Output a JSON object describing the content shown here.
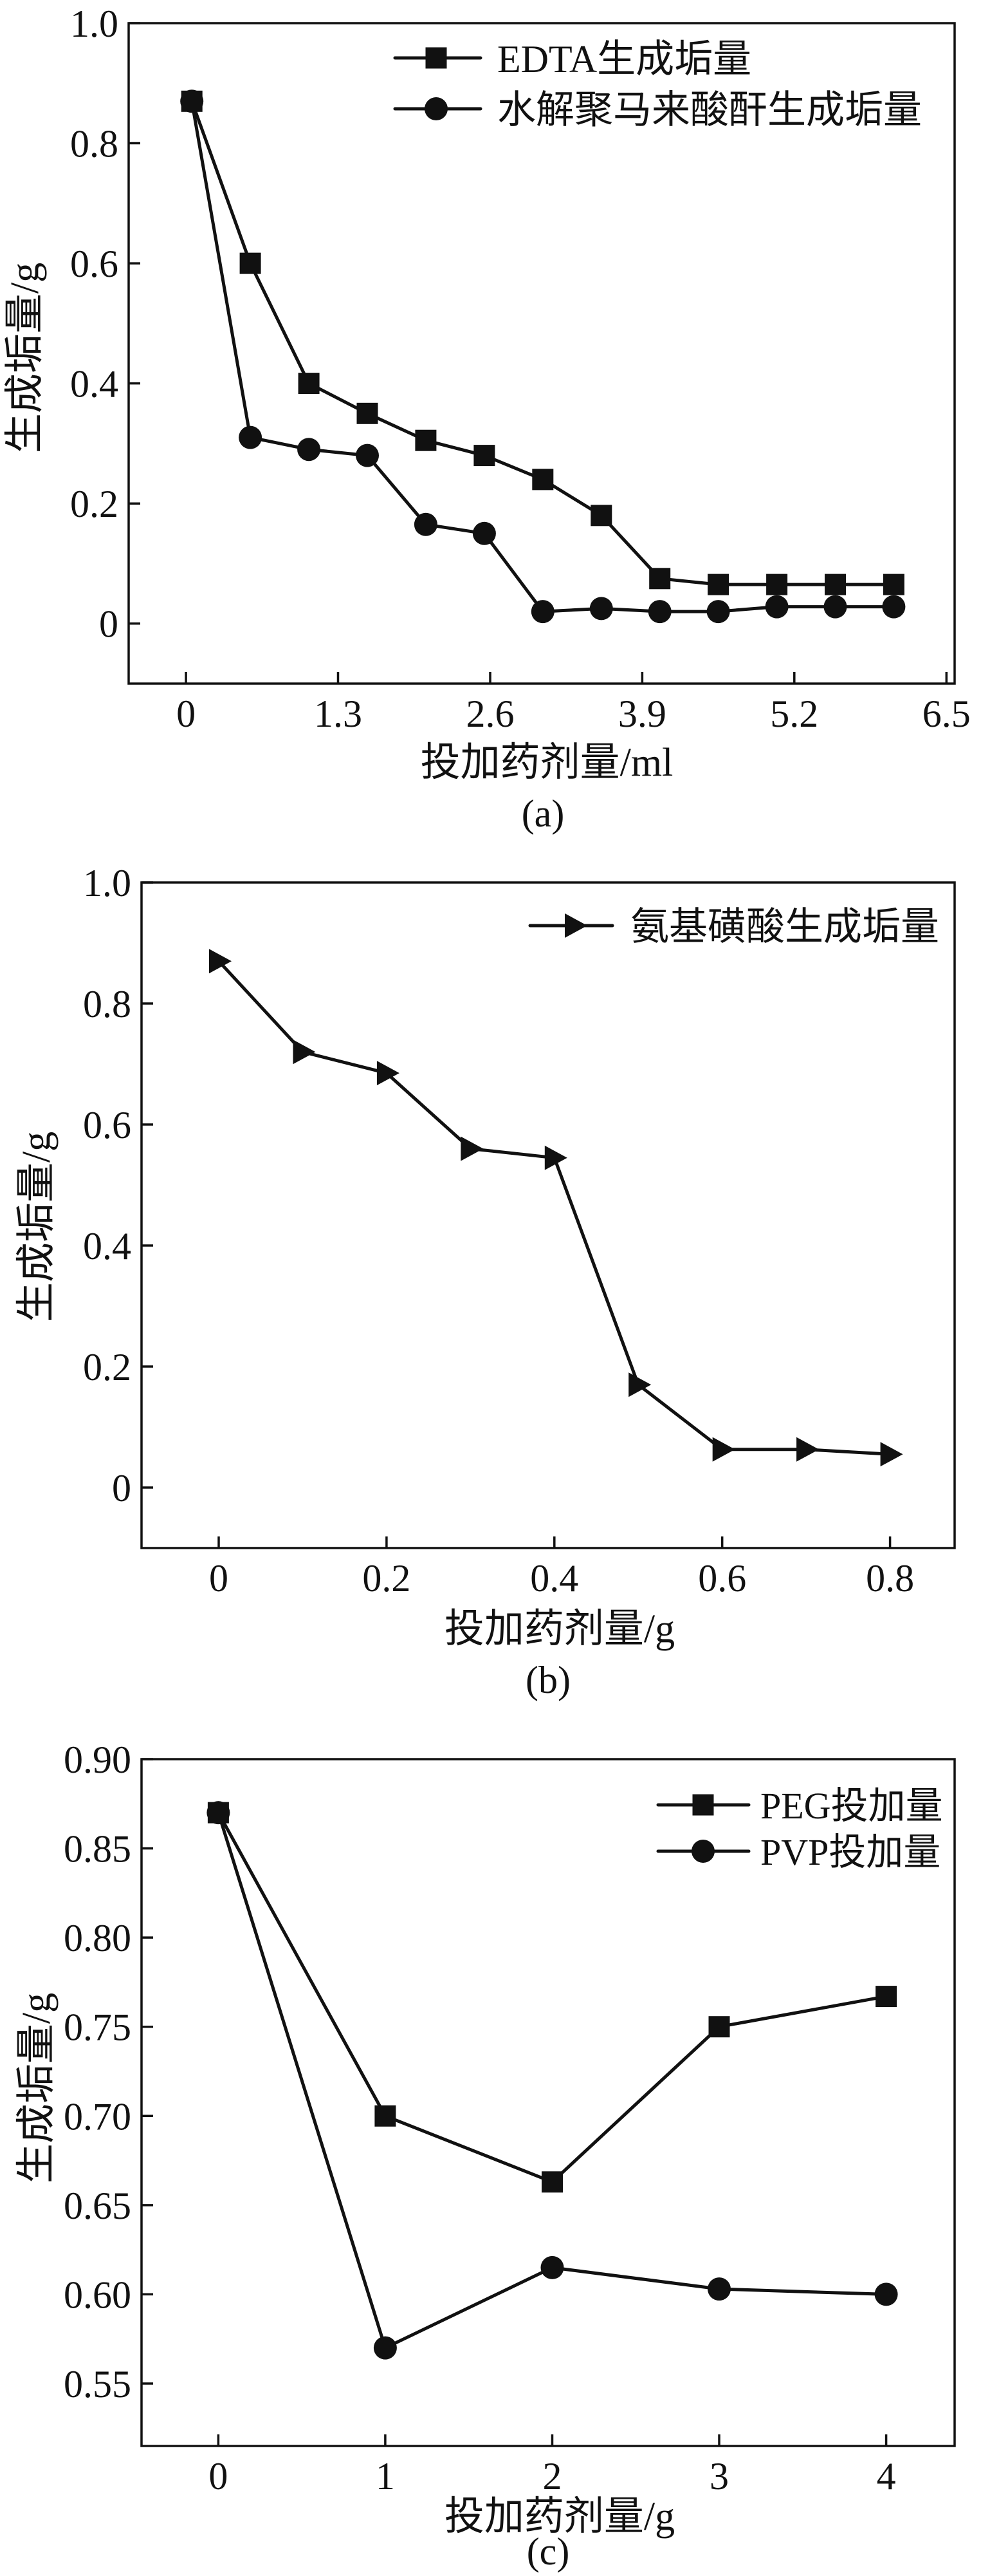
{
  "chart_data": [
    {
      "type": "line",
      "panel_label": "(a)",
      "xlabel": "投加药剂量/ml",
      "ylabel": "生成垢量/g",
      "xlim": [
        -0.49,
        6.57
      ],
      "ylim": [
        -0.1,
        1.0
      ],
      "xticks": [
        "0",
        "1.3",
        "2.6",
        "3.9",
        "5.2",
        "6.5"
      ],
      "yticks": [
        "0",
        "0.2",
        "0.4",
        "0.6",
        "0.8",
        "1.0"
      ],
      "grid": false,
      "legend": "top-right",
      "series": [
        {
          "name": "EDTA生成垢量",
          "marker": "square",
          "x": [
            0.05,
            0.55,
            1.05,
            1.55,
            2.05,
            2.55,
            3.05,
            3.55,
            4.05,
            4.55,
            5.05,
            5.55,
            6.05
          ],
          "y": [
            0.87,
            0.6,
            0.4,
            0.35,
            0.305,
            0.28,
            0.24,
            0.18,
            0.075,
            0.065,
            0.065,
            0.065,
            0.065
          ]
        },
        {
          "name": "水解聚马来酸酐生成垢量",
          "marker": "circle",
          "x": [
            0.05,
            0.55,
            1.05,
            1.55,
            2.05,
            2.55,
            3.05,
            3.55,
            4.05,
            4.55,
            5.05,
            5.55,
            6.05
          ],
          "y": [
            0.87,
            0.31,
            0.29,
            0.28,
            0.165,
            0.15,
            0.02,
            0.025,
            0.02,
            0.02,
            0.028,
            0.028,
            0.028
          ]
        }
      ]
    },
    {
      "type": "line",
      "panel_label": "(b)",
      "xlabel": "投加药剂量/g",
      "ylabel": "生成垢量/g",
      "xlim": [
        -0.092,
        0.877
      ],
      "ylim": [
        -0.1,
        1.0
      ],
      "xticks": [
        "0",
        "0.2",
        "0.4",
        "0.6",
        "0.8"
      ],
      "yticks": [
        "0",
        "0.2",
        "0.4",
        "0.6",
        "0.8",
        "1.0"
      ],
      "grid": false,
      "legend": "top-right",
      "series": [
        {
          "name": "氨基磺酸生成垢量",
          "marker": "triangle-right",
          "x": [
            0,
            0.1,
            0.2,
            0.3,
            0.4,
            0.5,
            0.6,
            0.7,
            0.8
          ],
          "y": [
            0.87,
            0.72,
            0.685,
            0.56,
            0.545,
            0.17,
            0.063,
            0.063,
            0.055
          ]
        }
      ]
    },
    {
      "type": "line",
      "panel_label": "(c)",
      "xlabel": "投加药剂量/g",
      "ylabel": "生成垢量/g",
      "xlim": [
        -0.46,
        4.41
      ],
      "ylim": [
        0.515,
        0.9
      ],
      "xticks": [
        "0",
        "1",
        "2",
        "3",
        "4"
      ],
      "yticks": [
        "0.55",
        "0.60",
        "0.65",
        "0.70",
        "0.75",
        "0.80",
        "0.85",
        "0.90"
      ],
      "grid": false,
      "legend": "top-right",
      "series": [
        {
          "name": "PEG投加量",
          "marker": "square",
          "x": [
            0,
            1,
            2,
            3,
            4
          ],
          "y": [
            0.87,
            0.7,
            0.663,
            0.75,
            0.767
          ]
        },
        {
          "name": "PVP投加量",
          "marker": "circle",
          "x": [
            0,
            1,
            2,
            3,
            4
          ],
          "y": [
            0.87,
            0.57,
            0.615,
            0.603,
            0.6
          ]
        }
      ]
    }
  ]
}
